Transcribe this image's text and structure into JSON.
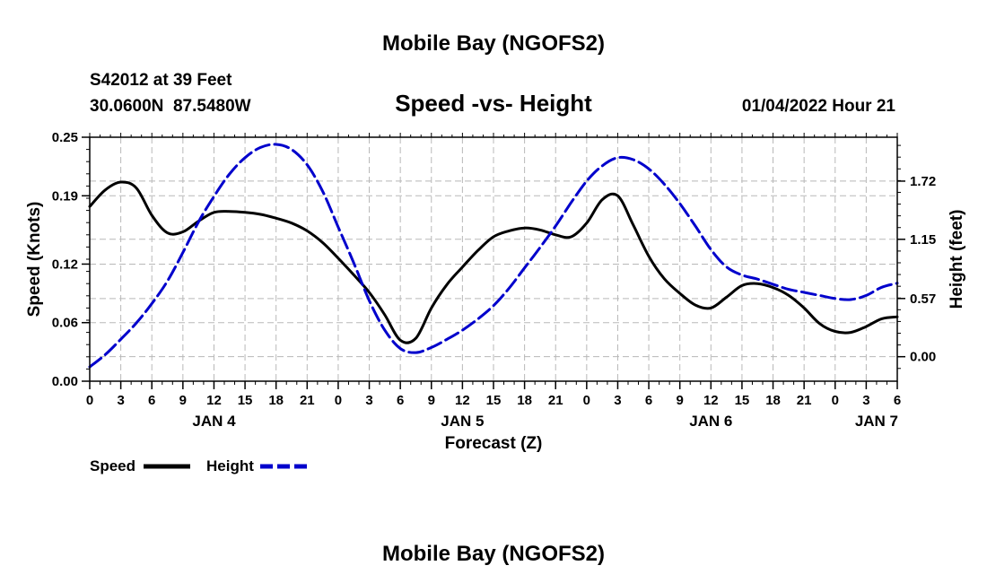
{
  "page": {
    "title": "Mobile Bay (NGOFS2)",
    "footer_title": "Mobile Bay (NGOFS2)",
    "station_line": "S42012 at 39 Feet",
    "coords_line": "30.0600N  87.5480W",
    "timestamp": "01/04/2022 Hour 21"
  },
  "chart_data": {
    "type": "line",
    "title": "Speed -vs- Height",
    "xlabel": "Forecast (Z)",
    "ylabel_left": "Speed (Knots)",
    "ylabel_right": "Height (feet)",
    "x_range_hours": [
      0,
      78
    ],
    "x_tick_step": 3,
    "x_tick_labels": [
      "0",
      "3",
      "6",
      "9",
      "12",
      "15",
      "18",
      "21",
      "0",
      "3",
      "6",
      "9",
      "12",
      "15",
      "18",
      "21",
      "0",
      "3",
      "6",
      "9",
      "12",
      "15",
      "18",
      "21",
      "0",
      "3",
      "6"
    ],
    "date_labels": [
      {
        "label": "JAN 4",
        "hour": 12
      },
      {
        "label": "JAN 5",
        "hour": 36
      },
      {
        "label": "JAN 6",
        "hour": 60
      },
      {
        "label": "JAN 7",
        "hour": 76
      }
    ],
    "y_left": {
      "range": [
        0,
        0.25
      ],
      "ticks": [
        0.0,
        0.06,
        0.12,
        0.19,
        0.25
      ],
      "tick_labels": [
        "0.00",
        "0.06",
        "0.12",
        "0.19",
        "0.25"
      ]
    },
    "y_right": {
      "range": [
        -0.24,
        2.15
      ],
      "ticks": [
        0.0,
        0.57,
        1.15,
        1.72
      ],
      "tick_labels": [
        "0.00",
        "0.57",
        "1.15",
        "1.72"
      ]
    },
    "grid": true,
    "series": [
      {
        "name": "Speed",
        "axis": "left",
        "color": "#000000",
        "style": "solid",
        "x": [
          0,
          1.5,
          3,
          4.5,
          6,
          7.5,
          9,
          10.5,
          12,
          13.5,
          15,
          16.5,
          18,
          19.5,
          21,
          22.5,
          24,
          25.5,
          27,
          28.5,
          30,
          31.5,
          33,
          34.5,
          36,
          37.5,
          39,
          40.5,
          42,
          43.5,
          45,
          46.5,
          48,
          49.5,
          51,
          52.5,
          54,
          55.5,
          57,
          58.5,
          60,
          61.5,
          63,
          64.5,
          66,
          67.5,
          69,
          70.5,
          72,
          73.5,
          75,
          76.5,
          78
        ],
        "values": [
          0.179,
          0.196,
          0.204,
          0.198,
          0.17,
          0.152,
          0.153,
          0.164,
          0.173,
          0.174,
          0.173,
          0.171,
          0.167,
          0.162,
          0.154,
          0.142,
          0.126,
          0.109,
          0.091,
          0.068,
          0.042,
          0.044,
          0.075,
          0.099,
          0.117,
          0.134,
          0.148,
          0.154,
          0.157,
          0.155,
          0.15,
          0.148,
          0.162,
          0.186,
          0.19,
          0.16,
          0.128,
          0.105,
          0.09,
          0.078,
          0.075,
          0.086,
          0.098,
          0.1,
          0.096,
          0.088,
          0.075,
          0.059,
          0.051,
          0.05,
          0.056,
          0.064,
          0.066
        ]
      },
      {
        "name": "Height",
        "axis": "right",
        "color": "#0000cc",
        "style": "dashed",
        "x": [
          0,
          1.5,
          3,
          4.5,
          6,
          7.5,
          9,
          10.5,
          12,
          13.5,
          15,
          16.5,
          18,
          19.5,
          21,
          22.5,
          24,
          25.5,
          27,
          28.5,
          30,
          31.5,
          33,
          34.5,
          36,
          37.5,
          39,
          40.5,
          42,
          43.5,
          45,
          46.5,
          48,
          49.5,
          51,
          52.5,
          54,
          55.5,
          57,
          58.5,
          60,
          61.5,
          63,
          64.5,
          66,
          67.5,
          69,
          70.5,
          72,
          73.5,
          75,
          76.5,
          78
        ],
        "values": [
          -0.1,
          0.02,
          0.17,
          0.33,
          0.52,
          0.74,
          1.02,
          1.32,
          1.57,
          1.79,
          1.95,
          2.05,
          2.08,
          2.03,
          1.88,
          1.62,
          1.27,
          0.92,
          0.55,
          0.26,
          0.08,
          0.04,
          0.09,
          0.17,
          0.26,
          0.37,
          0.5,
          0.67,
          0.87,
          1.07,
          1.28,
          1.51,
          1.72,
          1.87,
          1.95,
          1.93,
          1.84,
          1.69,
          1.5,
          1.28,
          1.05,
          0.88,
          0.8,
          0.76,
          0.71,
          0.66,
          0.63,
          0.6,
          0.57,
          0.56,
          0.6,
          0.68,
          0.72
        ]
      }
    ],
    "legend": [
      {
        "label": "Speed",
        "color": "#000000",
        "style": "solid"
      },
      {
        "label": "Height",
        "color": "#0000cc",
        "style": "dashed"
      }
    ],
    "legend_position": "bottom-left"
  }
}
